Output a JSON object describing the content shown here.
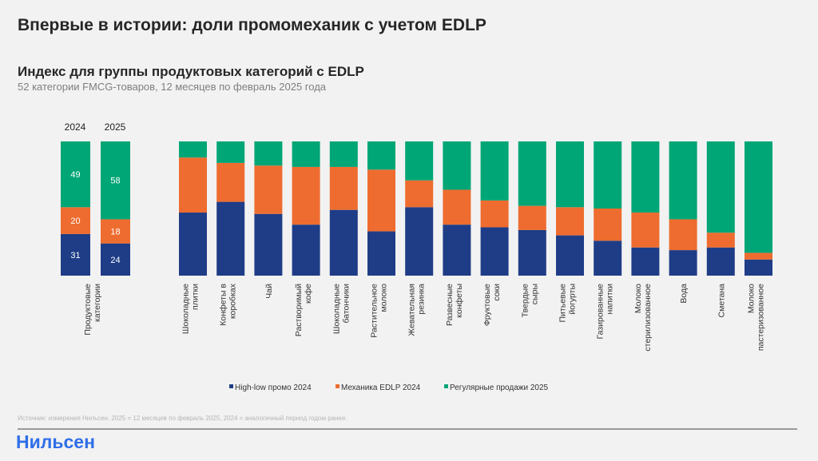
{
  "header": {
    "title": "Впервые в истории: доли промомеханик с учетом EDLP",
    "subtitle": "Индекс для группы продуктовых категорий с EDLP",
    "description": "52 категории FMCG-товаров, 12 месяцев по февраль 2025 года"
  },
  "colors": {
    "high_low": "#1f3d87",
    "edlp": "#ee6c2f",
    "regular": "#00a676",
    "background": "#f2f2f2"
  },
  "chart_data": [
    {
      "type": "bar",
      "stacked": true,
      "category_label": "Продуктовые категории",
      "categories": [
        "2024",
        "2025"
      ],
      "series": [
        {
          "name": "High-low промо 2024",
          "values": [
            31,
            24
          ]
        },
        {
          "name": "Механика EDLP 2024",
          "values": [
            20,
            18
          ]
        },
        {
          "name": "Регулярные продажи 2025",
          "values": [
            49,
            58
          ]
        }
      ],
      "data_labels": true,
      "ylim": [
        0,
        100
      ]
    },
    {
      "type": "bar",
      "stacked": true,
      "categories": [
        "Шоколадные плитки",
        "Конфеты в коробках",
        "Чай",
        "Растворимый кофе",
        "Шоколадные батончики",
        "Растительное молоко",
        "Жевательная резинка",
        "Развесные конфеты",
        "Фруктовые соки",
        "Твердые сыры",
        "Питьевые йогурты",
        "Газированные напитки",
        "Молоко стерилизованное",
        "Вода",
        "Сметана",
        "Молоко пастеризованное"
      ],
      "series": [
        {
          "name": "High-low промо 2024",
          "values": [
            47,
            55,
            46,
            38,
            49,
            33,
            51,
            38,
            36,
            34,
            30,
            26,
            21,
            19,
            21,
            12
          ]
        },
        {
          "name": "Механика EDLP 2024",
          "values": [
            41,
            29,
            36,
            43,
            32,
            46,
            20,
            26,
            20,
            18,
            21,
            24,
            26,
            23,
            11,
            5
          ]
        },
        {
          "name": "Регулярные продажи 2025",
          "values": [
            12,
            16,
            18,
            19,
            19,
            21,
            29,
            36,
            44,
            48,
            49,
            50,
            53,
            58,
            68,
            83
          ]
        }
      ],
      "data_labels": false,
      "ylim": [
        0,
        100
      ],
      "legend": "bottom"
    }
  ],
  "footer": {
    "source": "Источник: измерения Нильсен. 2025 = 12 месяцев по февраль 2025, 2024 = аналогичный период годом ранее.",
    "logo": "Нильсен"
  }
}
